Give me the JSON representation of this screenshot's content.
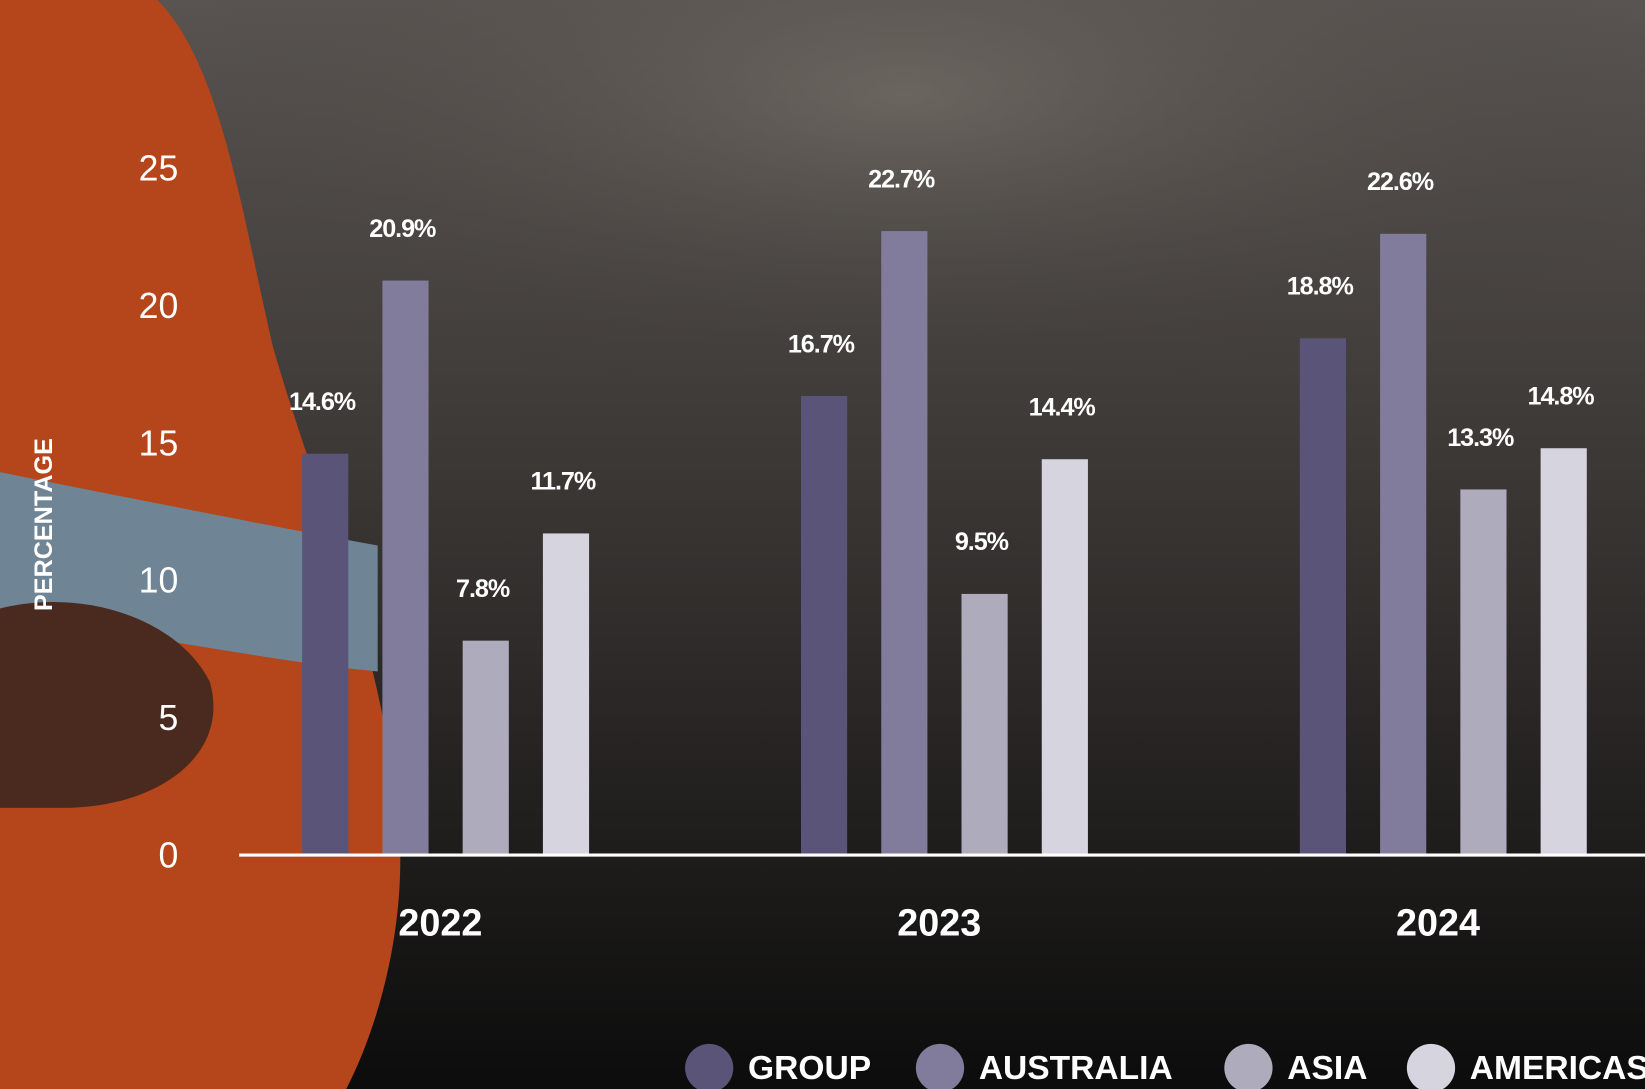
{
  "chart_data": {
    "type": "bar",
    "y_label": "PERCENTAGE",
    "categories": [
      "2022",
      "2023",
      "2024"
    ],
    "series": [
      {
        "name": "GROUP",
        "color": "#5a5478",
        "values": [
          14.6,
          16.7,
          18.8
        ],
        "value_labels": [
          "14.6%",
          "16.7%",
          "18.8%"
        ]
      },
      {
        "name": "AUSTRALIA",
        "color": "#827c9c",
        "values": [
          20.9,
          22.7,
          22.6
        ],
        "value_labels": [
          "20.9%",
          "22.7%",
          "22.6%"
        ]
      },
      {
        "name": "ASIA",
        "color": "#aeabbd",
        "values": [
          7.8,
          9.5,
          13.3
        ],
        "value_labels": [
          "7.8%",
          "9.5%",
          "13.3%"
        ]
      },
      {
        "name": "AMERICAS",
        "color": "#d6d4df",
        "values": [
          11.7,
          14.4,
          14.8
        ],
        "value_labels": [
          "11.7%",
          "14.4%",
          "14.8%"
        ]
      }
    ],
    "ylim": [
      0,
      25
    ],
    "yticks": [
      0,
      5,
      10,
      15,
      20,
      25
    ],
    "grid": false
  }
}
